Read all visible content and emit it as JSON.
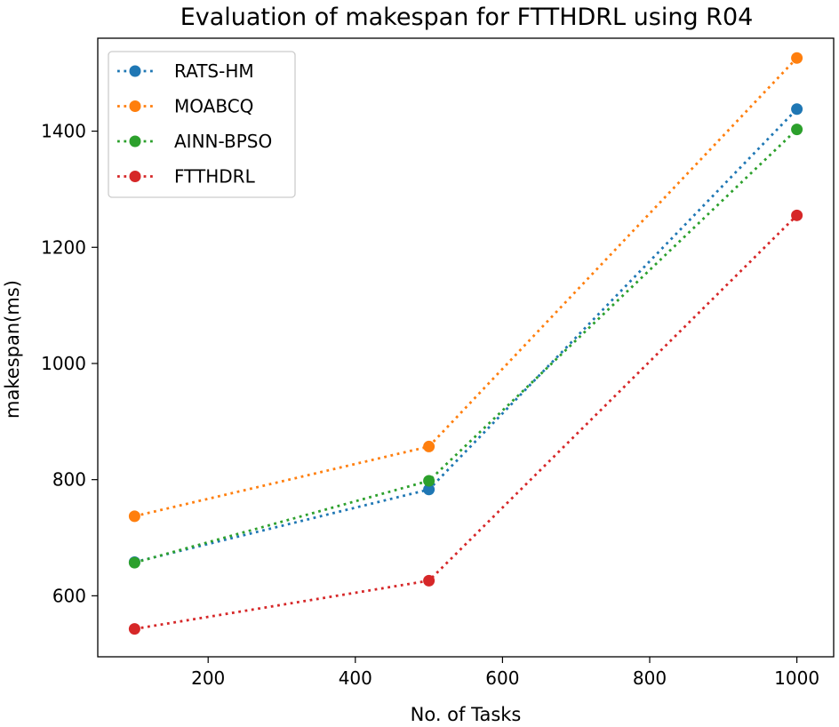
{
  "chart_data": {
    "type": "line",
    "title": "Evaluation of makespan for FTTHDRL using R04",
    "xlabel": "No. of Tasks",
    "ylabel": "makespan(ms)",
    "x": [
      100,
      500,
      1000
    ],
    "xlim": [
      50,
      1050
    ],
    "ylim": [
      495,
      1560
    ],
    "xticks": [
      200,
      400,
      600,
      800,
      1000
    ],
    "yticks": [
      600,
      800,
      1000,
      1200,
      1400
    ],
    "grid": false,
    "legend": "top-left",
    "line_style": "dotted",
    "marker": "circle",
    "series": [
      {
        "name": "RATS-HM",
        "color": "#1f77b4",
        "values": [
          658,
          783,
          1438
        ]
      },
      {
        "name": "MOABCQ",
        "color": "#ff7f0e",
        "values": [
          737,
          857,
          1526
        ]
      },
      {
        "name": "AINN-BPSO",
        "color": "#2ca02c",
        "values": [
          657,
          798,
          1403
        ]
      },
      {
        "name": "FTTHDRL",
        "color": "#d62728",
        "values": [
          543,
          626,
          1255
        ]
      }
    ]
  }
}
